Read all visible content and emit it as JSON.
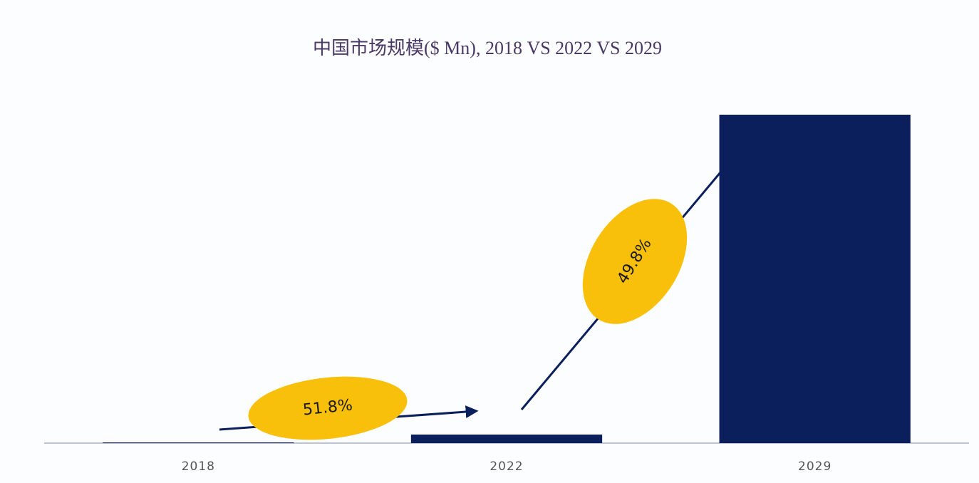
{
  "chart_data": {
    "type": "bar",
    "title": "中国市场规模($ Mn), 2018 VS 2022 VS 2029",
    "categories": [
      "2018",
      "2022",
      "2029"
    ],
    "values": [
      0.2,
      2.6,
      100
    ],
    "color": "#0b1f5c",
    "ylim": [
      0,
      100
    ],
    "annotations": [
      "51.8%",
      "49.8%"
    ]
  }
}
